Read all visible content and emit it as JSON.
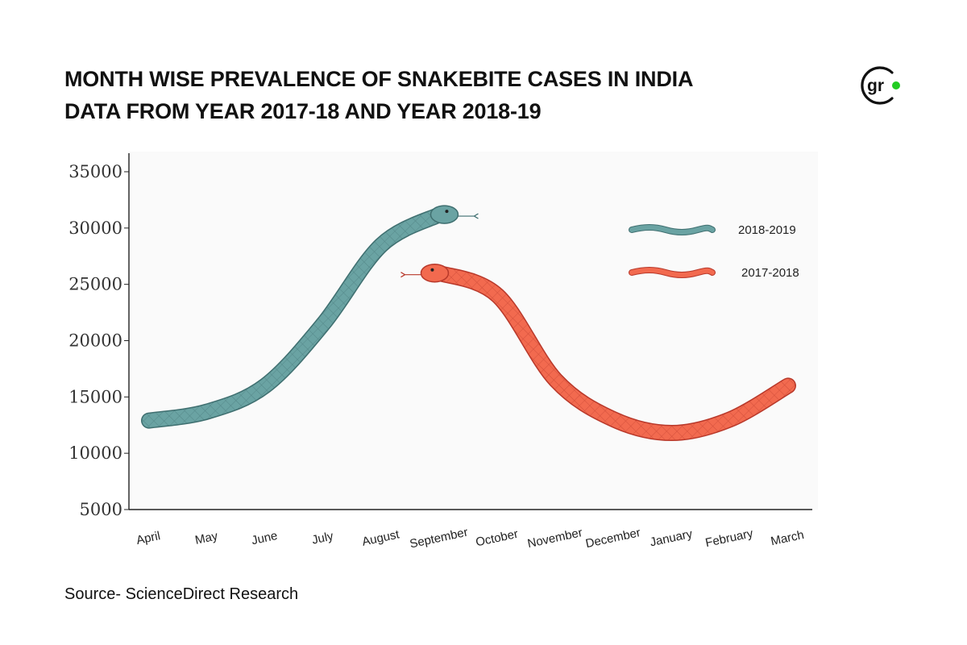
{
  "title_line1": "MONTH WISE PREVALENCE OF SNAKEBITE CASES IN INDIA",
  "title_line2": "DATA FROM YEAR 2017-18 AND YEAR 2018-19",
  "logo_text": "gr",
  "source": "Source- ScienceDirect Research",
  "colors": {
    "series_2018_2019": "#6aa3a3",
    "series_2018_2019_stroke": "#3f6f70",
    "series_2017_2018": "#f26a4f",
    "series_2017_2018_stroke": "#b8382a",
    "logo_dot": "#22cc22"
  },
  "chart_data": {
    "type": "line",
    "title": "MONTH WISE PREVALENCE OF SNAKEBITE CASES IN INDIA",
    "subtitle": "DATA FROM YEAR 2017-18 AND YEAR 2018-19",
    "xlabel": "",
    "ylabel": "",
    "categories": [
      "April",
      "May",
      "June",
      "July",
      "August",
      "September",
      "October",
      "November",
      "December",
      "January",
      "February",
      "March"
    ],
    "yticks": [
      5000,
      10000,
      15000,
      20000,
      25000,
      30000,
      35000
    ],
    "ylim": [
      5000,
      36500
    ],
    "grid": false,
    "legend_position": "top-right",
    "series": [
      {
        "name": "2018-2019",
        "values": [
          12900,
          13700,
          16000,
          21500,
          28500,
          31200,
          null,
          null,
          null,
          null,
          null,
          null
        ]
      },
      {
        "name": "2017-2018",
        "values": [
          null,
          null,
          null,
          null,
          null,
          26000,
          24000,
          16500,
          13000,
          11800,
          13000,
          16000
        ]
      }
    ]
  }
}
